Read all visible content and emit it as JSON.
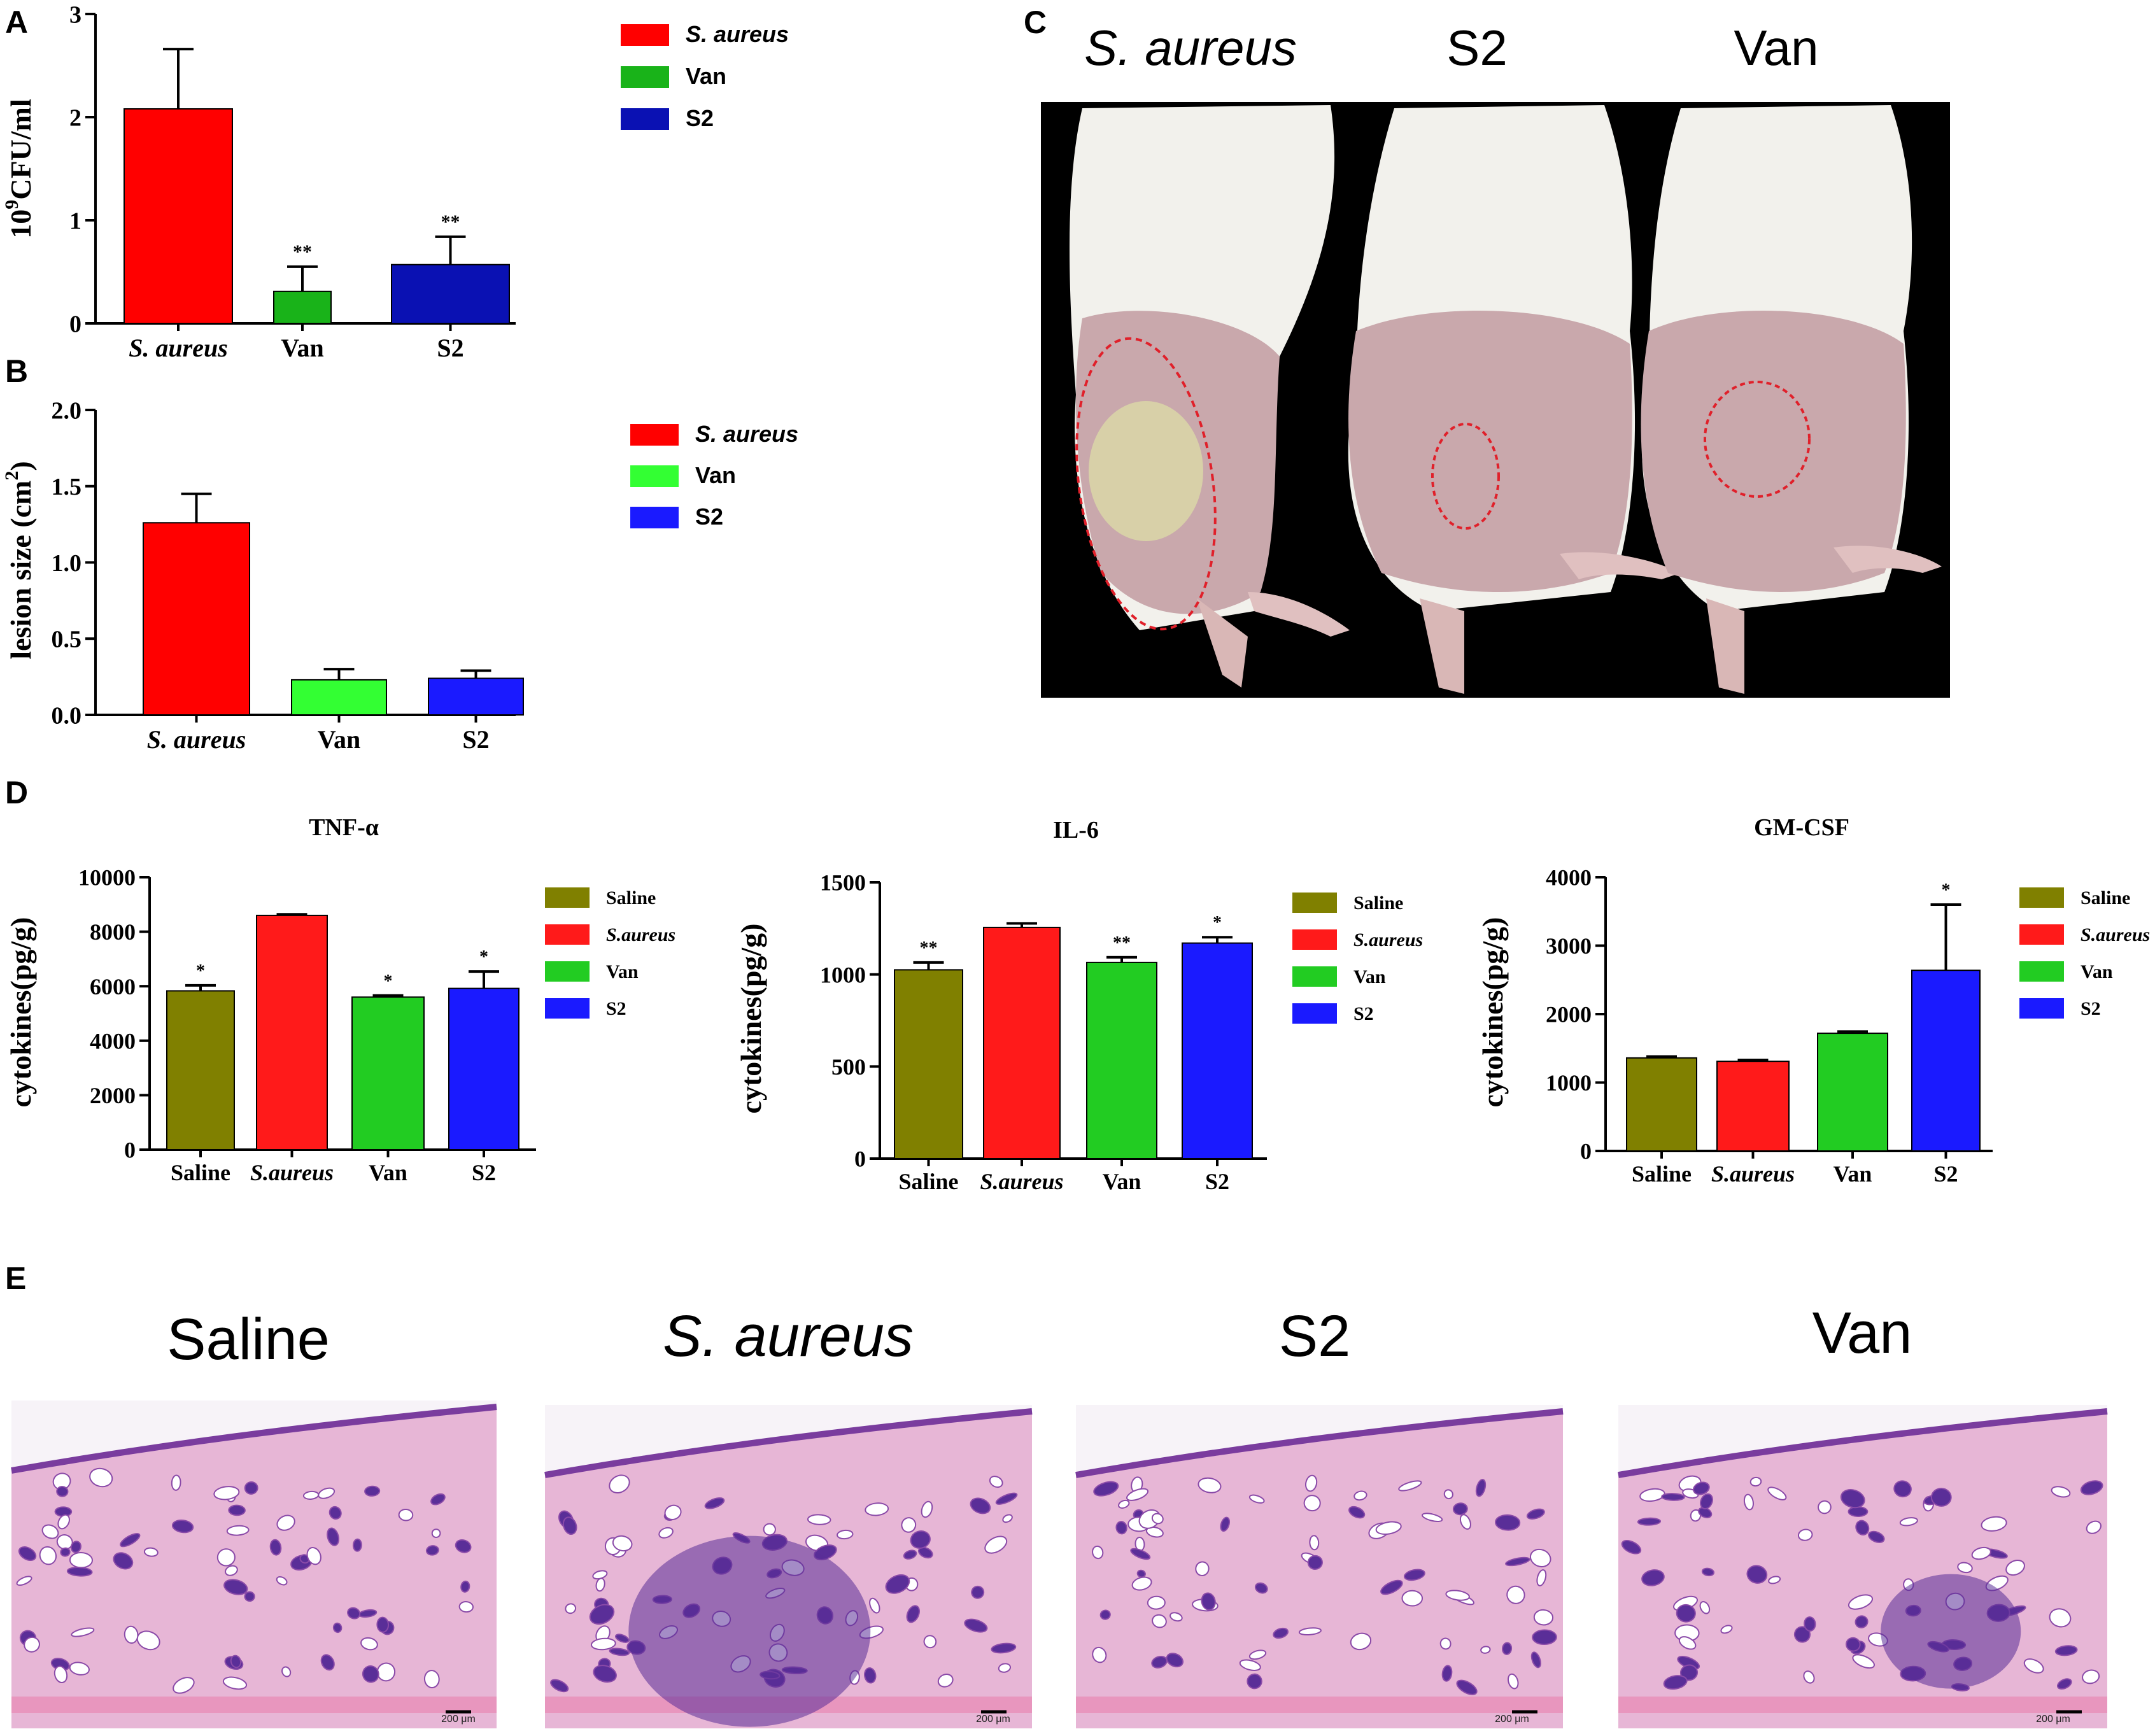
{
  "panels": {
    "A": "A",
    "B": "B",
    "C": "C",
    "D": "D",
    "E": "E"
  },
  "chart_data": [
    {
      "id": "A",
      "type": "bar",
      "title": "",
      "ylabel_base": "10",
      "ylabel_exp": "9",
      "ylabel_unit": "CFU/ml",
      "xlabel": "",
      "categories": [
        "S. aureus",
        "Van",
        "S2"
      ],
      "italic_categories": [
        true,
        false,
        false
      ],
      "values": [
        2.08,
        0.31,
        0.57
      ],
      "errors": [
        0.58,
        0.24,
        0.27
      ],
      "annotations": [
        "",
        "**",
        "**"
      ],
      "colors": [
        "#ff0000",
        "#19b319",
        "#0a11b3"
      ],
      "ylim": [
        0,
        3
      ],
      "yticks": [
        0,
        1,
        2,
        3
      ],
      "ytick_labels": [
        "0",
        "1",
        "2",
        "3"
      ],
      "legend": [
        "S. aureus",
        "Van",
        "S2"
      ],
      "legend_italic": [
        true,
        false,
        false
      ],
      "legend_position": "right"
    },
    {
      "id": "B",
      "type": "bar",
      "title": "",
      "ylabel_base": "lesion size (cm",
      "ylabel_exp": "2",
      "ylabel_unit": ")",
      "xlabel": "",
      "categories": [
        "S. aureus",
        "Van",
        "S2"
      ],
      "italic_categories": [
        true,
        false,
        false
      ],
      "values": [
        1.26,
        0.23,
        0.24
      ],
      "errors": [
        0.19,
        0.07,
        0.05
      ],
      "annotations": [
        "",
        "",
        ""
      ],
      "colors": [
        "#ff0000",
        "#33ff33",
        "#1a1aff"
      ],
      "ylim": [
        0,
        2.0
      ],
      "yticks": [
        0,
        0.5,
        1.0,
        1.5,
        2.0
      ],
      "ytick_labels": [
        "0.0",
        "0.5",
        "1.0",
        "1.5",
        "2.0"
      ],
      "legend": [
        "S. aureus",
        "Van",
        "S2"
      ],
      "legend_italic": [
        true,
        false,
        false
      ],
      "legend_position": "right"
    },
    {
      "id": "D1",
      "type": "bar",
      "title": "TNF-α",
      "ylabel": "cytokines(pg/g)",
      "xlabel": "",
      "categories": [
        "Saline",
        "S.aureus",
        "Van",
        "S2"
      ],
      "italic_categories": [
        false,
        true,
        false,
        false
      ],
      "values": [
        5830,
        8600,
        5600,
        5920
      ],
      "errors": [
        200,
        40,
        60,
        620
      ],
      "annotations": [
        "*",
        "",
        "*",
        "*"
      ],
      "colors": [
        "#808000",
        "#ff1a1a",
        "#22cc22",
        "#1a1aff"
      ],
      "ylim": [
        0,
        10000
      ],
      "yticks": [
        0,
        2000,
        4000,
        6000,
        8000,
        10000
      ],
      "ytick_labels": [
        "0",
        "2000",
        "4000",
        "6000",
        "8000",
        "10000"
      ],
      "legend": [
        "Saline",
        "S.aureus",
        "Van",
        "S2"
      ],
      "legend_italic": [
        false,
        true,
        false,
        false
      ],
      "legend_position": "right"
    },
    {
      "id": "D2",
      "type": "bar",
      "title": "IL-6",
      "ylabel": "cytokines(pg/g)",
      "xlabel": "",
      "categories": [
        "Saline",
        "S.aureus",
        "Van",
        "S2"
      ],
      "italic_categories": [
        false,
        true,
        false,
        false
      ],
      "values": [
        1025,
        1255,
        1065,
        1170
      ],
      "errors": [
        40,
        22,
        28,
        32
      ],
      "annotations": [
        "**",
        "",
        "**",
        "*"
      ],
      "colors": [
        "#808000",
        "#ff1a1a",
        "#22cc22",
        "#1a1aff"
      ],
      "ylim": [
        0,
        1500
      ],
      "yticks": [
        0,
        500,
        1000,
        1500
      ],
      "ytick_labels": [
        "0",
        "500",
        "1000",
        "1500"
      ],
      "legend": [
        "Saline",
        "S.aureus",
        "Van",
        "S2"
      ],
      "legend_italic": [
        false,
        true,
        false,
        false
      ],
      "legend_position": "right"
    },
    {
      "id": "D3",
      "type": "bar",
      "title": "GM-CSF",
      "ylabel": "cytokines(pg/g)",
      "xlabel": "",
      "categories": [
        "Saline",
        "S.aureus",
        "Van",
        "S2"
      ],
      "italic_categories": [
        false,
        true,
        false,
        false
      ],
      "values": [
        1360,
        1310,
        1720,
        2640
      ],
      "errors": [
        20,
        20,
        25,
        960
      ],
      "annotations": [
        "",
        "",
        "",
        "*"
      ],
      "colors": [
        "#808000",
        "#ff1a1a",
        "#22cc22",
        "#1a1aff"
      ],
      "ylim": [
        0,
        4000
      ],
      "yticks": [
        0,
        1000,
        2000,
        3000,
        4000
      ],
      "ytick_labels": [
        "0",
        "1000",
        "2000",
        "3000",
        "4000"
      ],
      "legend": [
        "Saline",
        "S.aureus",
        "Van",
        "S2"
      ],
      "legend_italic": [
        false,
        true,
        false,
        false
      ],
      "legend_position": "right"
    }
  ],
  "photo_c": {
    "labels": [
      "S. aureus",
      "S2",
      "Van"
    ],
    "italic": [
      true,
      false,
      false
    ],
    "background": "#000000",
    "fur": "#f2f1ec",
    "skin": "#c9a8ac",
    "lesion_ring": "#e0202a"
  },
  "histology_e": {
    "labels": [
      "Saline",
      "S. aureus",
      "S2",
      "Van"
    ],
    "italic": [
      false,
      true,
      false,
      false
    ],
    "scale_bar": [
      "200 μm",
      "200 μm",
      "200 μm",
      "200 μm"
    ],
    "stain_pink": "#e7b6d6",
    "stain_purple": "#5a2e98"
  }
}
